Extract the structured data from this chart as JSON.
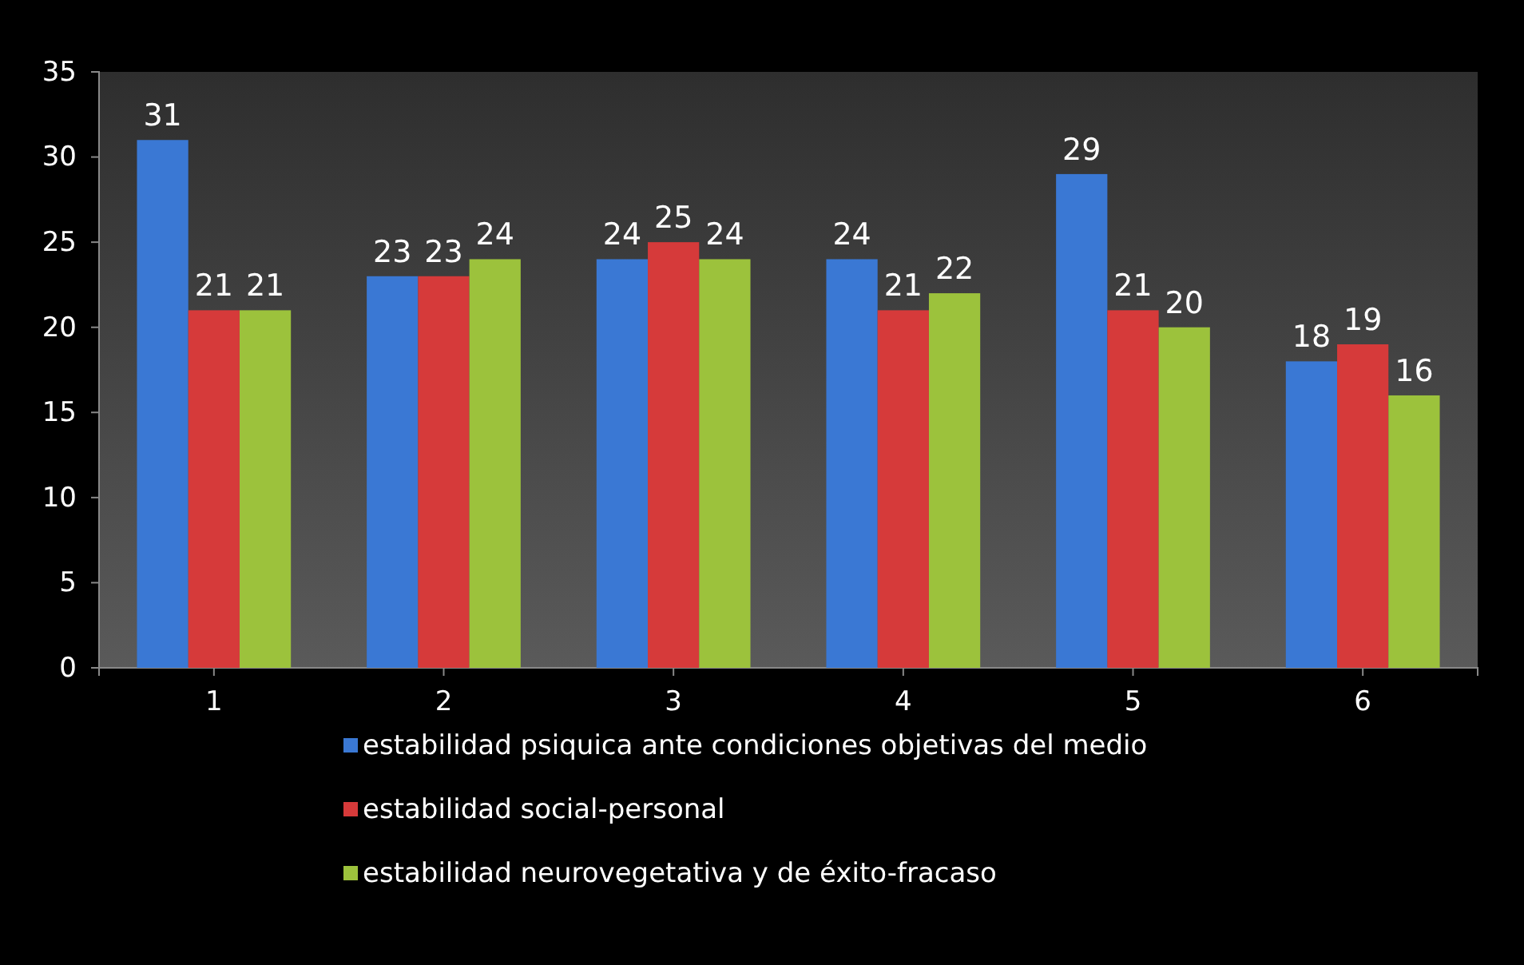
{
  "chart_data": {
    "type": "bar",
    "categories": [
      "1",
      "2",
      "3",
      "4",
      "5",
      "6"
    ],
    "series": [
      {
        "name": "estabilidad psiquica ante condiciones objetivas del medio",
        "color": "#3a78d4",
        "values": [
          31,
          23,
          24,
          24,
          29,
          18
        ]
      },
      {
        "name": "estabilidad social-personal",
        "color": "#d63a3a",
        "values": [
          21,
          23,
          25,
          21,
          21,
          19
        ]
      },
      {
        "name": "estabilidad  neurovegetativa y de éxito-fracaso",
        "color": "#9cc23c",
        "values": [
          21,
          24,
          24,
          22,
          20,
          16
        ]
      }
    ],
    "ylim": [
      0,
      35
    ],
    "yticks": [
      0,
      5,
      10,
      15,
      20,
      25,
      30,
      35
    ],
    "data_labels": true,
    "legend": "bottom",
    "grid": false
  }
}
